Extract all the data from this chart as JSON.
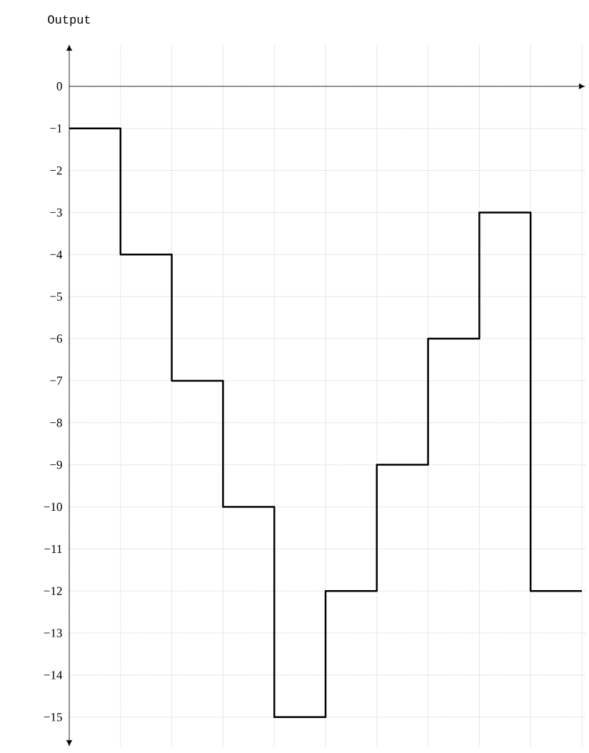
{
  "chart_data": {
    "type": "step",
    "ylabel": "Output",
    "categories": [
      null,
      null,
      null,
      null,
      null,
      null,
      null,
      null,
      null,
      null,
      null
    ],
    "values": [
      -1,
      -4,
      -7,
      -10,
      -15,
      -12,
      -9,
      -6,
      -3,
      -12,
      -12
    ],
    "color": "#000000",
    "ylim": [
      -15.7,
      1
    ],
    "yticks": [
      0,
      {
        "value": -1,
        "label": "−1"
      },
      {
        "value": -2,
        "label": "−2"
      },
      {
        "value": -3,
        "label": "−3"
      },
      {
        "value": -4,
        "label": "−4"
      },
      {
        "value": -5,
        "label": "−5"
      },
      {
        "value": -6,
        "label": "−6"
      },
      {
        "value": -7,
        "label": "−7"
      },
      {
        "value": -8,
        "label": "−8"
      },
      {
        "value": -9,
        "label": "−9"
      },
      {
        "value": -10,
        "label": "−10"
      },
      {
        "value": -11,
        "label": "−11"
      },
      {
        "value": -12,
        "label": "−12"
      },
      {
        "value": -13,
        "label": "−13"
      },
      {
        "value": -14,
        "label": "−14"
      },
      {
        "value": -15,
        "label": "−15"
      }
    ],
    "grid": true
  }
}
